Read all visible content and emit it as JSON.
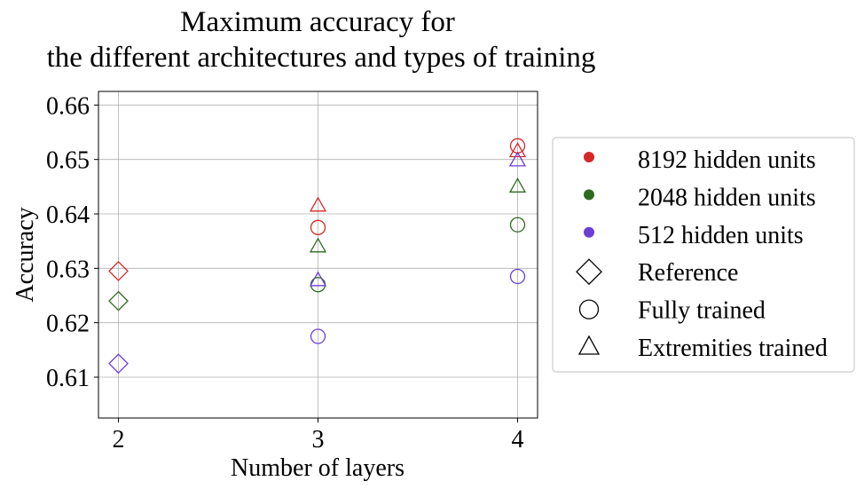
{
  "chart_data": {
    "type": "scatter",
    "title_lines": [
      "Maximum accuracy for",
      "the different architectures and types of training"
    ],
    "xlabel": "Number of layers",
    "ylabel": "Accuracy",
    "xlim": [
      1.9,
      4.1
    ],
    "ylim": [
      0.6025,
      0.6625
    ],
    "xticks": [
      2,
      3,
      4
    ],
    "xtick_labels": [
      "2",
      "3",
      "4"
    ],
    "yticks": [
      0.61,
      0.62,
      0.63,
      0.64,
      0.65,
      0.66
    ],
    "ytick_labels": [
      "0.61",
      "0.62",
      "0.63",
      "0.64",
      "0.65",
      "0.66"
    ],
    "grid": true,
    "legend_position": "right, outside plot",
    "series_colors": {
      "8192": "#d62728",
      "2048": "#2e6b1f",
      "512": "#6a3fd6"
    },
    "legend": [
      {
        "label": "8192 hidden units",
        "kind": "color",
        "color": "#d62728"
      },
      {
        "label": "2048 hidden units",
        "kind": "color",
        "color": "#2e6b1f"
      },
      {
        "label": "512 hidden units",
        "kind": "color",
        "color": "#6a3fd6"
      },
      {
        "label": "Reference",
        "kind": "marker",
        "marker": "diamond"
      },
      {
        "label": "Fully trained",
        "kind": "marker",
        "marker": "circle"
      },
      {
        "label": "Extremities trained",
        "kind": "marker",
        "marker": "triangle"
      }
    ],
    "points": [
      {
        "x": 2,
        "y": 0.6295,
        "units": "8192",
        "marker": "diamond"
      },
      {
        "x": 2,
        "y": 0.624,
        "units": "2048",
        "marker": "diamond"
      },
      {
        "x": 2,
        "y": 0.6125,
        "units": "512",
        "marker": "diamond"
      },
      {
        "x": 3,
        "y": 0.6375,
        "units": "8192",
        "marker": "circle"
      },
      {
        "x": 3,
        "y": 0.627,
        "units": "2048",
        "marker": "circle"
      },
      {
        "x": 3,
        "y": 0.6175,
        "units": "512",
        "marker": "circle"
      },
      {
        "x": 3,
        "y": 0.6415,
        "units": "8192",
        "marker": "triangle"
      },
      {
        "x": 3,
        "y": 0.634,
        "units": "2048",
        "marker": "triangle"
      },
      {
        "x": 3,
        "y": 0.6278,
        "units": "512",
        "marker": "triangle"
      },
      {
        "x": 4,
        "y": 0.6525,
        "units": "8192",
        "marker": "circle"
      },
      {
        "x": 4,
        "y": 0.638,
        "units": "2048",
        "marker": "circle"
      },
      {
        "x": 4,
        "y": 0.6285,
        "units": "512",
        "marker": "circle"
      },
      {
        "x": 4,
        "y": 0.6515,
        "units": "8192",
        "marker": "triangle"
      },
      {
        "x": 4,
        "y": 0.645,
        "units": "2048",
        "marker": "triangle"
      },
      {
        "x": 4,
        "y": 0.6498,
        "units": "512",
        "marker": "triangle"
      }
    ]
  }
}
